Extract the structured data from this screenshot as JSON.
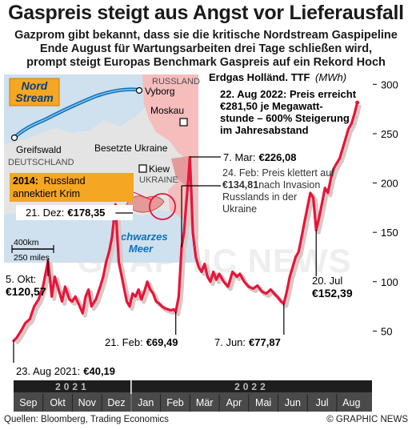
{
  "headline": "Gaspreis steigt aus Angst vor Lieferausfall",
  "subheadline": [
    "Gazprom gibt bekannt, dass sie die kritische Nordstream Gaspipeline",
    "Ende August für Wartungsarbeiten drei Tage schließen wird,",
    "prompt steigt Europas Benchmark Gaspreis auf ein Rekord Hoch"
  ],
  "footer": {
    "source": "Quellen: Bloomberg, Trading Economics",
    "copyright": "© GRAPHIC NEWS"
  },
  "watermark": "GRAPHIC NEWS",
  "map": {
    "pipeline_label": [
      "Nord",
      "Stream"
    ],
    "places": {
      "russia": "RUSSLAND",
      "vyborg": "Vyborg",
      "moscow": "Moskau",
      "greifswald": "Greifswald",
      "germany": "DEUTSCHLAND",
      "occupied": "Besetzte Ukraine",
      "kyiv": "Kiew",
      "ukraine": "UKRAINE",
      "black_sea": [
        "Schwarzes",
        "Meer"
      ]
    },
    "crimea_note": {
      "year": "2014:",
      "text": [
        "Russland",
        "annektiert Krim"
      ]
    },
    "scale": [
      "400km",
      "250 miles"
    ]
  },
  "chart_data": {
    "type": "line",
    "title": "Erdgas Holländ. TTF",
    "unit": "(MWh)",
    "ylim": [
      0,
      310
    ],
    "yticks": [
      50,
      100,
      150,
      200,
      250,
      300
    ],
    "xlim": [
      0,
      12.2
    ],
    "months": [
      "Sep",
      "Okt",
      "Nov",
      "Dez",
      "Jan",
      "Feb",
      "Mär",
      "Apr",
      "Mai",
      "Jun",
      "Jul",
      "Aug"
    ],
    "years": [
      "2021",
      "2022"
    ],
    "grid": false,
    "series": [
      {
        "values": [
          [
            0.0,
            40.19
          ],
          [
            0.1,
            43
          ],
          [
            0.25,
            50
          ],
          [
            0.4,
            58
          ],
          [
            0.55,
            62
          ],
          [
            0.7,
            75
          ],
          [
            0.85,
            82
          ],
          [
            1.0,
            95
          ],
          [
            1.1,
            110
          ],
          [
            1.17,
            120.57
          ],
          [
            1.25,
            100
          ],
          [
            1.3,
            85
          ],
          [
            1.4,
            105
          ],
          [
            1.55,
            90
          ],
          [
            1.65,
            80
          ],
          [
            1.75,
            95
          ],
          [
            1.9,
            82
          ],
          [
            2.0,
            80
          ],
          [
            2.1,
            85
          ],
          [
            2.25,
            75
          ],
          [
            2.35,
            68
          ],
          [
            2.45,
            85
          ],
          [
            2.55,
            92
          ],
          [
            2.65,
            75
          ],
          [
            2.8,
            82
          ],
          [
            2.95,
            95
          ],
          [
            3.05,
            105
          ],
          [
            3.15,
            120
          ],
          [
            3.25,
            130
          ],
          [
            3.35,
            145
          ],
          [
            3.47,
            178.35
          ],
          [
            3.52,
            150
          ],
          [
            3.58,
            120
          ],
          [
            3.65,
            110
          ],
          [
            3.75,
            95
          ],
          [
            3.85,
            80
          ],
          [
            3.95,
            75
          ],
          [
            4.05,
            88
          ],
          [
            4.15,
            85
          ],
          [
            4.25,
            92
          ],
          [
            4.35,
            82
          ],
          [
            4.45,
            90
          ],
          [
            4.55,
            100
          ],
          [
            4.65,
            92
          ],
          [
            4.75,
            88
          ],
          [
            4.85,
            80
          ],
          [
            4.95,
            78
          ],
          [
            5.05,
            75
          ],
          [
            5.15,
            73
          ],
          [
            5.25,
            72
          ],
          [
            5.35,
            71
          ],
          [
            5.45,
            72
          ],
          [
            5.52,
            69.49
          ],
          [
            5.62,
            85
          ],
          [
            5.72,
            134.81
          ],
          [
            5.8,
            150
          ],
          [
            5.88,
            180
          ],
          [
            5.95,
            205
          ],
          [
            6.0,
            226.08
          ],
          [
            6.05,
            190
          ],
          [
            6.1,
            150
          ],
          [
            6.2,
            125
          ],
          [
            6.3,
            115
          ],
          [
            6.4,
            110
          ],
          [
            6.5,
            118
          ],
          [
            6.6,
            105
          ],
          [
            6.7,
            100
          ],
          [
            6.8,
            110
          ],
          [
            6.9,
            102
          ],
          [
            7.0,
            108
          ],
          [
            7.15,
            100
          ],
          [
            7.3,
            95
          ],
          [
            7.45,
            110
          ],
          [
            7.6,
            105
          ],
          [
            7.7,
            108
          ],
          [
            7.85,
            100
          ],
          [
            8.0,
            95
          ],
          [
            8.15,
            93
          ],
          [
            8.3,
            96
          ],
          [
            8.45,
            90
          ],
          [
            8.6,
            88
          ],
          [
            8.75,
            92
          ],
          [
            8.9,
            87
          ],
          [
            9.0,
            84
          ],
          [
            9.1,
            80
          ],
          [
            9.2,
            77.87
          ],
          [
            9.3,
            90
          ],
          [
            9.4,
            105
          ],
          [
            9.5,
            115
          ],
          [
            9.6,
            125
          ],
          [
            9.7,
            130
          ],
          [
            9.8,
            145
          ],
          [
            9.9,
            160
          ],
          [
            10.0,
            175
          ],
          [
            10.1,
            190
          ],
          [
            10.2,
            185
          ],
          [
            10.3,
            152.39
          ],
          [
            10.4,
            165
          ],
          [
            10.5,
            180
          ],
          [
            10.6,
            195
          ],
          [
            10.7,
            190
          ],
          [
            10.8,
            205
          ],
          [
            10.9,
            215
          ],
          [
            11.0,
            220
          ],
          [
            11.1,
            225
          ],
          [
            11.2,
            235
          ],
          [
            11.3,
            245
          ],
          [
            11.4,
            255
          ],
          [
            11.5,
            260
          ],
          [
            11.6,
            270
          ],
          [
            11.7,
            281.5
          ]
        ]
      }
    ],
    "annotations": [
      {
        "id": "a-aug21",
        "label": "23. Aug 2021:",
        "value": "€40,19"
      },
      {
        "id": "a-okt",
        "label": "5. Okt:",
        "value": "€120,57"
      },
      {
        "id": "a-dez",
        "label": "21. Dez:",
        "value": "€178,35"
      },
      {
        "id": "a-feb21",
        "label": "21. Feb:",
        "value": "€69,49"
      },
      {
        "id": "a-mar7",
        "label": "7. Mar:",
        "value": "€226,08"
      },
      {
        "id": "a-feb24",
        "lines": [
          "24. Feb: Preis klettert auf",
          "€134,81nach Invasion",
          "Russlands in der",
          "Ukraine"
        ]
      },
      {
        "id": "a-jun7",
        "label": "7. Jun:",
        "value": "€77,87"
      },
      {
        "id": "a-jul20",
        "label": "20. Jul",
        "value": "€152,39"
      },
      {
        "id": "a-aug22",
        "lines": [
          "22. Aug 2022: Preis erreicht",
          "€281,50 je Megawatt-",
          "stunde – 600% Steigerung",
          "im Jahresabstand"
        ]
      }
    ],
    "colors": {
      "line": "#e8143a",
      "shadow": "#d9c7c4",
      "axis_band": "#4a4a4a",
      "year_band": "#1e1e1e"
    }
  }
}
